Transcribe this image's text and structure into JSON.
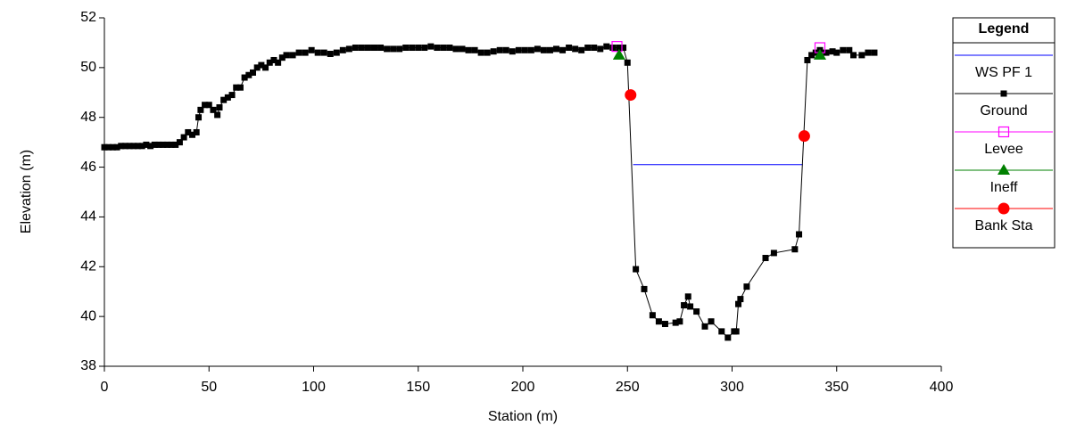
{
  "chart_data": {
    "type": "line",
    "xlabel": "Station (m)",
    "ylabel": "Elevation (m)",
    "xlim": [
      0,
      400
    ],
    "xticks": [
      0,
      50,
      100,
      150,
      200,
      250,
      300,
      350,
      400
    ],
    "ylim": [
      38,
      52
    ],
    "yticks": [
      38,
      40,
      42,
      44,
      46,
      48,
      50,
      52
    ],
    "legend_title": "Legend",
    "legend": "right",
    "series": [
      {
        "name": "WS PF 1",
        "color": "#0000ff",
        "marker": "none",
        "line": true,
        "x": [
          252.7,
          333.8
        ],
        "values": [
          46.1,
          46.1
        ]
      },
      {
        "name": "Ground",
        "color": "#000000",
        "marker": "square",
        "line": true,
        "x": [
          0,
          2,
          4,
          6,
          8,
          10,
          12,
          14,
          16,
          18,
          20,
          22,
          24,
          26,
          28,
          30,
          32,
          34,
          36,
          38,
          40,
          42,
          44,
          45,
          46,
          48,
          50,
          52,
          54,
          55,
          57,
          59,
          61,
          63,
          65,
          67,
          69,
          71,
          73,
          75,
          77,
          79,
          81,
          83,
          85,
          87,
          90,
          93,
          96,
          99,
          102,
          105,
          108,
          111,
          114,
          117,
          120,
          123,
          126,
          129,
          132,
          135,
          138,
          141,
          144,
          147,
          150,
          153,
          156,
          159,
          162,
          165,
          168,
          171,
          174,
          177,
          180,
          183,
          186,
          189,
          192,
          195,
          198,
          201,
          204,
          207,
          210,
          213,
          216,
          219,
          222,
          225,
          228,
          231,
          234,
          237,
          240,
          243,
          246,
          248,
          250,
          254,
          258,
          262,
          265,
          268,
          273,
          275,
          277,
          279,
          280,
          283,
          287,
          290,
          295,
          298,
          301,
          302,
          303,
          304,
          307,
          316,
          320,
          330,
          332,
          336,
          338,
          340,
          342,
          345,
          348,
          350,
          353,
          356,
          358,
          362,
          365,
          368
        ],
        "values": [
          46.8,
          46.8,
          46.8,
          46.8,
          46.85,
          46.85,
          46.85,
          46.85,
          46.85,
          46.85,
          46.9,
          46.85,
          46.9,
          46.9,
          46.9,
          46.9,
          46.9,
          46.9,
          47.0,
          47.2,
          47.4,
          47.3,
          47.4,
          48.0,
          48.3,
          48.5,
          48.5,
          48.3,
          48.1,
          48.4,
          48.7,
          48.8,
          48.9,
          49.2,
          49.2,
          49.6,
          49.7,
          49.8,
          50.0,
          50.1,
          50.0,
          50.2,
          50.3,
          50.2,
          50.4,
          50.5,
          50.5,
          50.6,
          50.6,
          50.7,
          50.6,
          50.6,
          50.55,
          50.6,
          50.7,
          50.75,
          50.8,
          50.8,
          50.8,
          50.8,
          50.8,
          50.75,
          50.75,
          50.75,
          50.8,
          50.8,
          50.8,
          50.8,
          50.85,
          50.8,
          50.8,
          50.8,
          50.75,
          50.75,
          50.7,
          50.7,
          50.6,
          50.6,
          50.65,
          50.7,
          50.7,
          50.65,
          50.7,
          50.7,
          50.7,
          50.75,
          50.7,
          50.7,
          50.75,
          50.7,
          50.8,
          50.75,
          50.7,
          50.8,
          50.8,
          50.75,
          50.85,
          50.8,
          50.8,
          50.8,
          50.2,
          41.9,
          41.1,
          40.05,
          39.8,
          39.7,
          39.75,
          39.8,
          40.45,
          40.8,
          40.4,
          40.2,
          39.6,
          39.8,
          39.4,
          39.15,
          39.4,
          39.4,
          40.5,
          40.7,
          41.2,
          42.35,
          42.55,
          42.7,
          43.3,
          50.3,
          50.5,
          50.6,
          50.7,
          50.6,
          50.65,
          50.6,
          50.7,
          50.7,
          50.5,
          50.5,
          50.6,
          50.6
        ]
      },
      {
        "name": "Levee",
        "color": "#ff00ff",
        "marker": "open-square",
        "line": false,
        "x": [
          245,
          342
        ],
        "values": [
          50.85,
          50.8
        ]
      },
      {
        "name": "Ineff",
        "color": "#008000",
        "marker": "triangle",
        "line": false,
        "x": [
          246,
          342
        ],
        "values": [
          50.5,
          50.5
        ]
      },
      {
        "name": "Bank Sta",
        "color": "#ff0000",
        "marker": "circle",
        "line": false,
        "x": [
          251.5,
          334.5
        ],
        "values": [
          48.9,
          47.25
        ]
      }
    ]
  }
}
